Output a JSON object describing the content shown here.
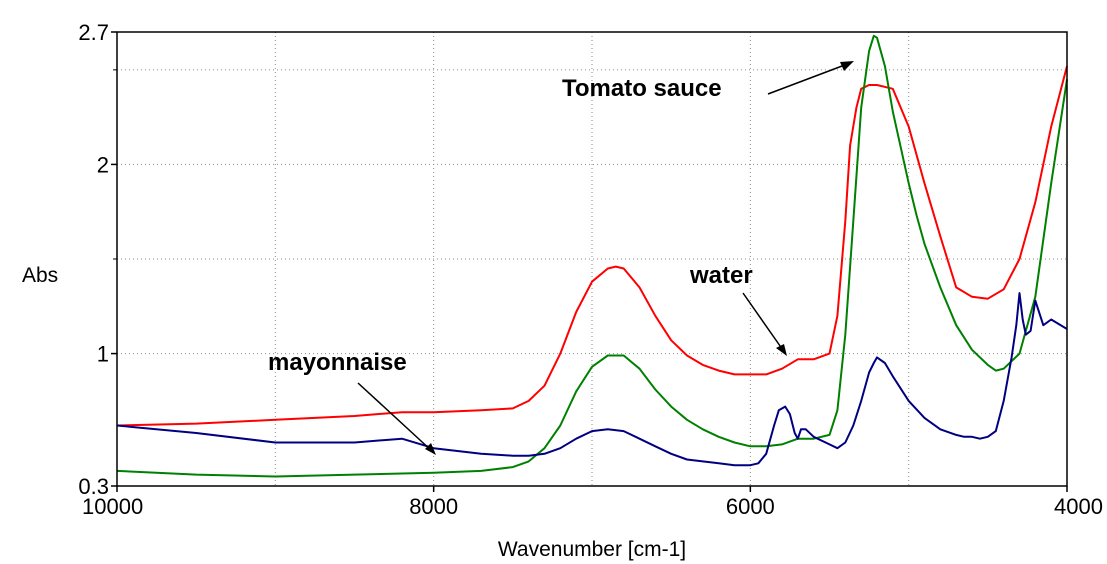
{
  "chart_data": {
    "type": "line",
    "xlabel": "Wavenumber [cm-1]",
    "ylabel": "Abs",
    "xlim": [
      10000,
      4000
    ],
    "ylim": [
      0.3,
      2.7
    ],
    "x_reversed": true,
    "grid": true,
    "x_ticks": [
      10000,
      8000,
      6000,
      4000
    ],
    "x_tick_labels": [
      "10000",
      "8000",
      "6000",
      "4000"
    ],
    "y_ticks": [
      0.3,
      1,
      2,
      2.7
    ],
    "y_tick_labels": [
      "0.3",
      "1",
      "2",
      "2.7"
    ],
    "x_gridlines": [
      9000,
      8000,
      7000,
      6000,
      5000
    ],
    "y_gridlines": [
      1,
      1.5,
      2,
      2.5
    ],
    "series": [
      {
        "color": "#ff0000",
        "x": [
          10000,
          9500,
          9000,
          8500,
          8200,
          8000,
          7700,
          7500,
          7400,
          7300,
          7200,
          7100,
          7000,
          6900,
          6850,
          6800,
          6700,
          6600,
          6500,
          6400,
          6300,
          6200,
          6100,
          6000,
          5900,
          5800,
          5700,
          5600,
          5500,
          5450,
          5400,
          5370,
          5330,
          5300,
          5250,
          5200,
          5100,
          5000,
          4950,
          4900,
          4800,
          4700,
          4600,
          4500,
          4400,
          4300,
          4200,
          4100,
          4000
        ],
        "y": [
          0.62,
          0.63,
          0.65,
          0.67,
          0.69,
          0.69,
          0.7,
          0.71,
          0.75,
          0.83,
          1.0,
          1.22,
          1.38,
          1.45,
          1.46,
          1.45,
          1.35,
          1.2,
          1.07,
          0.99,
          0.94,
          0.91,
          0.89,
          0.89,
          0.89,
          0.92,
          0.97,
          0.97,
          1.0,
          1.2,
          1.7,
          2.1,
          2.3,
          2.4,
          2.42,
          2.42,
          2.4,
          2.2,
          2.05,
          1.9,
          1.62,
          1.35,
          1.3,
          1.29,
          1.34,
          1.5,
          1.8,
          2.2,
          2.52
        ]
      },
      {
        "color": "#008000",
        "x": [
          10000,
          9500,
          9000,
          8500,
          8000,
          7700,
          7500,
          7400,
          7300,
          7200,
          7100,
          7000,
          6900,
          6800,
          6700,
          6600,
          6500,
          6400,
          6300,
          6200,
          6100,
          6000,
          5900,
          5800,
          5700,
          5600,
          5500,
          5450,
          5400,
          5350,
          5300,
          5250,
          5220,
          5200,
          5150,
          5100,
          5000,
          4950,
          4900,
          4800,
          4700,
          4600,
          4500,
          4450,
          4400,
          4300,
          4200,
          4100,
          4000
        ],
        "y": [
          0.38,
          0.36,
          0.35,
          0.36,
          0.37,
          0.38,
          0.4,
          0.43,
          0.5,
          0.62,
          0.8,
          0.93,
          0.99,
          0.99,
          0.92,
          0.81,
          0.72,
          0.65,
          0.6,
          0.56,
          0.53,
          0.51,
          0.51,
          0.52,
          0.55,
          0.55,
          0.57,
          0.7,
          1.1,
          1.7,
          2.3,
          2.6,
          2.68,
          2.67,
          2.52,
          2.28,
          1.9,
          1.73,
          1.58,
          1.35,
          1.15,
          1.02,
          0.94,
          0.91,
          0.92,
          1.0,
          1.3,
          1.9,
          2.45
        ]
      },
      {
        "color": "#000080",
        "x": [
          10000,
          9500,
          9000,
          8500,
          8200,
          8000,
          7700,
          7500,
          7400,
          7300,
          7200,
          7100,
          7000,
          6900,
          6800,
          6700,
          6600,
          6500,
          6400,
          6300,
          6200,
          6100,
          6000,
          5950,
          5900,
          5850,
          5820,
          5780,
          5750,
          5720,
          5700,
          5680,
          5650,
          5600,
          5500,
          5450,
          5400,
          5350,
          5300,
          5250,
          5220,
          5200,
          5150,
          5100,
          5000,
          4900,
          4800,
          4700,
          4650,
          4600,
          4550,
          4500,
          4450,
          4400,
          4350,
          4320,
          4300,
          4280,
          4260,
          4230,
          4200,
          4150,
          4100,
          4000
        ],
        "y": [
          0.62,
          0.58,
          0.53,
          0.53,
          0.55,
          0.5,
          0.47,
          0.46,
          0.46,
          0.47,
          0.5,
          0.55,
          0.59,
          0.6,
          0.59,
          0.55,
          0.51,
          0.47,
          0.44,
          0.43,
          0.42,
          0.41,
          0.41,
          0.42,
          0.47,
          0.62,
          0.7,
          0.72,
          0.68,
          0.58,
          0.55,
          0.6,
          0.6,
          0.56,
          0.52,
          0.5,
          0.53,
          0.62,
          0.75,
          0.9,
          0.95,
          0.98,
          0.95,
          0.88,
          0.75,
          0.66,
          0.6,
          0.57,
          0.56,
          0.56,
          0.55,
          0.56,
          0.59,
          0.75,
          0.98,
          1.15,
          1.32,
          1.18,
          1.1,
          1.12,
          1.28,
          1.15,
          1.18,
          1.13
        ]
      }
    ],
    "annotations": [
      {
        "text": "Tomato sauce",
        "point_to": [
          5250,
          2.65
        ]
      },
      {
        "text": "water",
        "point_to": [
          5800,
          1.0
        ]
      },
      {
        "text": "mayonnaise",
        "point_to": [
          8000,
          0.52
        ]
      }
    ]
  }
}
